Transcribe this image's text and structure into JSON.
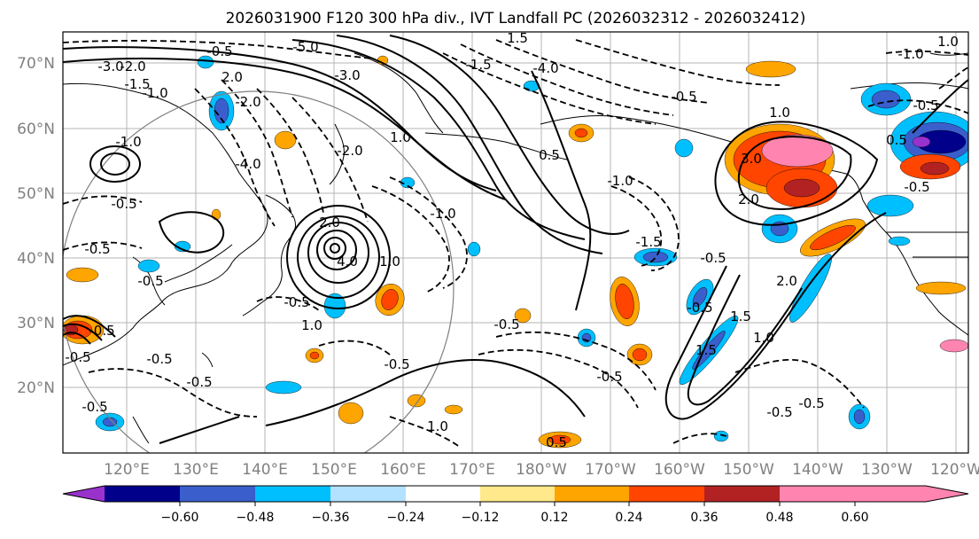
{
  "title": "2026031900 F120 300 hPa div., IVT Landfall PC (2026032312 - 2026032412)",
  "axes": {
    "lat_labels": [
      "70°N",
      "60°N",
      "50°N",
      "40°N",
      "30°N",
      "20°N"
    ],
    "lon_labels": [
      "120°E",
      "130°E",
      "140°E",
      "150°E",
      "160°E",
      "170°E",
      "180°W",
      "170°W",
      "160°W",
      "150°W",
      "140°W",
      "130°W",
      "120°W"
    ],
    "tick_color": "#808080"
  },
  "colorbar": {
    "colors": [
      "#9932cc",
      "#00008b",
      "#3a5fcd",
      "#00bfff",
      "#b2e2ff",
      "#ffffff",
      "#ffe98a",
      "#ffa500",
      "#ff4500",
      "#b22222",
      "#ff85b0"
    ],
    "tick_labels": [
      "−0.60",
      "−0.48",
      "−0.36",
      "−0.24",
      "−0.12",
      "0.12",
      "0.24",
      "0.36",
      "0.48",
      "0.60"
    ]
  },
  "contour_labels": [
    "-5.0",
    "-3.0",
    "-2.0",
    "-1.5",
    "-1.0",
    "-2.0",
    "-3.0",
    "-4.0",
    "-0.5",
    "-0.5",
    "-0.5",
    "-1.0",
    "-2.0",
    "-0.5",
    "2.0",
    "4.0",
    "-0.5",
    "1.0",
    "-0.5",
    "-0.5",
    "-0.5",
    "-0.5",
    "-1.0",
    "-1.5",
    "-0.5",
    "0.5",
    "-4.0",
    "-1.5",
    "-1.0",
    "1.0",
    "3.0",
    "2.0",
    "1.0",
    "1.5",
    "2.0",
    "1.0",
    "1.5",
    "-0.5",
    "-0.5",
    "-0.5",
    "-0.5",
    "-1.0",
    "1.0",
    "-0.5",
    "-0.5",
    "0.5",
    "0.5",
    "1.0",
    "-0.5",
    "-0.5",
    "-0.5",
    "1.0",
    "1.5",
    "2.0",
    "-0.5"
  ]
}
